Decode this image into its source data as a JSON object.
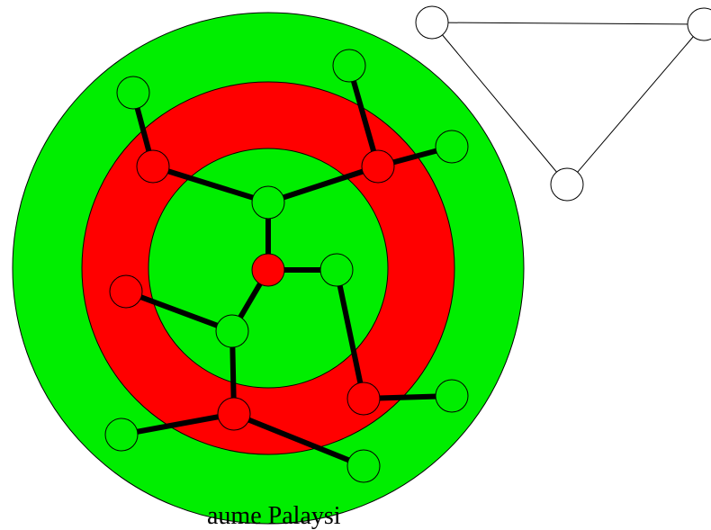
{
  "colors": {
    "ring_green": "#00ee00",
    "ring_red": "#ff0000",
    "outline": "#000000",
    "background": "#ffffff",
    "triangle_node_fill": "#ffffff"
  },
  "rings": [
    "green-outer",
    "red-middle",
    "green-inner"
  ],
  "tree": {
    "nodes": [
      {
        "id": "n1",
        "color": "green"
      },
      {
        "id": "n2",
        "color": "green"
      },
      {
        "id": "n3",
        "color": "green"
      },
      {
        "id": "n4",
        "color": "red"
      },
      {
        "id": "n5",
        "color": "red"
      },
      {
        "id": "n6",
        "color": "green"
      },
      {
        "id": "n7",
        "color": "red"
      },
      {
        "id": "n8",
        "color": "green"
      },
      {
        "id": "n9",
        "color": "red"
      },
      {
        "id": "n10",
        "color": "green"
      },
      {
        "id": "n11",
        "color": "green"
      },
      {
        "id": "n12",
        "color": "red"
      },
      {
        "id": "n13",
        "color": "green"
      },
      {
        "id": "n14",
        "color": "red"
      },
      {
        "id": "n15",
        "color": "green"
      },
      {
        "id": "n16",
        "color": "green"
      }
    ],
    "edges": [
      [
        "n1",
        "n4"
      ],
      [
        "n2",
        "n5"
      ],
      [
        "n3",
        "n5"
      ],
      [
        "n4",
        "n6"
      ],
      [
        "n5",
        "n6"
      ],
      [
        "n6",
        "n7"
      ],
      [
        "n7",
        "n8"
      ],
      [
        "n7",
        "n10"
      ],
      [
        "n9",
        "n10"
      ],
      [
        "n8",
        "n12"
      ],
      [
        "n10",
        "n14"
      ],
      [
        "n12",
        "n13"
      ],
      [
        "n14",
        "n15"
      ],
      [
        "n14",
        "n16"
      ]
    ]
  },
  "triangle": {
    "nodes": [
      {
        "id": "t1"
      },
      {
        "id": "t2"
      },
      {
        "id": "t3"
      }
    ],
    "edges": [
      [
        "t1",
        "t2"
      ],
      [
        "t2",
        "t3"
      ],
      [
        "t3",
        "t1"
      ]
    ]
  },
  "caption": "aume Palaysi"
}
